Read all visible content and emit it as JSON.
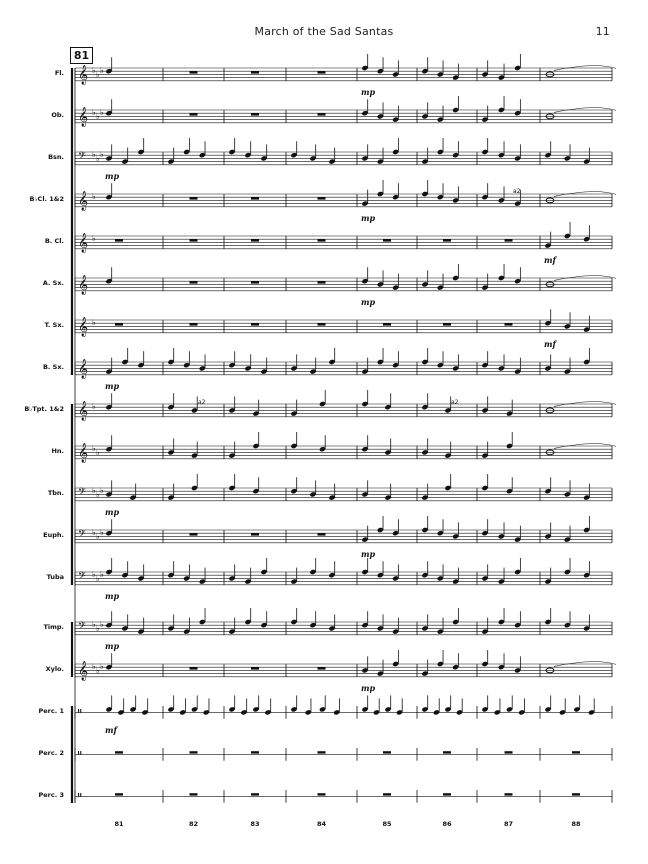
{
  "header": {
    "title": "March of the Sad Santas",
    "page_number": "11"
  },
  "rehearsal_mark": "81",
  "instruments": [
    {
      "label": "Fl.",
      "clef": "treble",
      "flats": 3,
      "dyn": "mp",
      "dyn_measure": 4
    },
    {
      "label": "Ob.",
      "clef": "treble",
      "flats": 3,
      "dyn": "",
      "dyn_measure": -1
    },
    {
      "label": "Bsn.",
      "clef": "bass",
      "flats": 3,
      "dyn": "mp",
      "dyn_measure": 0
    },
    {
      "label": "B♭Cl. 1&2",
      "clef": "treble",
      "flats": 1,
      "dyn": "mp",
      "dyn_measure": 4
    },
    {
      "label": "B. Cl.",
      "clef": "treble",
      "flats": 1,
      "dyn": "mf",
      "dyn_measure": 7
    },
    {
      "label": "A. Sx.",
      "clef": "treble",
      "flats": 0,
      "dyn": "mp",
      "dyn_measure": 4
    },
    {
      "label": "T. Sx.",
      "clef": "treble",
      "flats": 1,
      "dyn": "mf",
      "dyn_measure": 7
    },
    {
      "label": "B. Sx.",
      "clef": "treble",
      "flats": 0,
      "dyn": "mp",
      "dyn_measure": 0
    },
    {
      "label": "B♭Tpt. 1&2",
      "clef": "treble",
      "flats": 1,
      "dyn": "",
      "dyn_measure": -1
    },
    {
      "label": "Hn.",
      "clef": "treble",
      "flats": 2,
      "dyn": "",
      "dyn_measure": -1
    },
    {
      "label": "Tbn.",
      "clef": "bass",
      "flats": 3,
      "dyn": "mp",
      "dyn_measure": 0
    },
    {
      "label": "Euph.",
      "clef": "bass",
      "flats": 3,
      "dyn": "mp",
      "dyn_measure": 4
    },
    {
      "label": "Tuba",
      "clef": "bass",
      "flats": 3,
      "dyn": "mp",
      "dyn_measure": 0
    },
    {
      "label": "Timp.",
      "clef": "bass",
      "flats": 3,
      "dyn": "mp",
      "dyn_measure": 0
    },
    {
      "label": "Xylo.",
      "clef": "treble",
      "flats": 3,
      "dyn": "mp",
      "dyn_measure": 4
    },
    {
      "label": "Perc. 1",
      "clef": "perc",
      "flats": 0,
      "dyn": "mf",
      "dyn_measure": 0
    },
    {
      "label": "Perc. 2",
      "clef": "perc",
      "flats": 0,
      "dyn": "",
      "dyn_measure": -1
    },
    {
      "label": "Perc. 3",
      "clef": "perc",
      "flats": 0,
      "dyn": "",
      "dyn_measure": -1
    }
  ],
  "marks": {
    "a2": "a2",
    "extra_mf_bcl": "mf",
    "extra_mf_tbn": "mf"
  },
  "measure_numbers": [
    "81",
    "82",
    "83",
    "84",
    "85",
    "86",
    "87",
    "88"
  ]
}
